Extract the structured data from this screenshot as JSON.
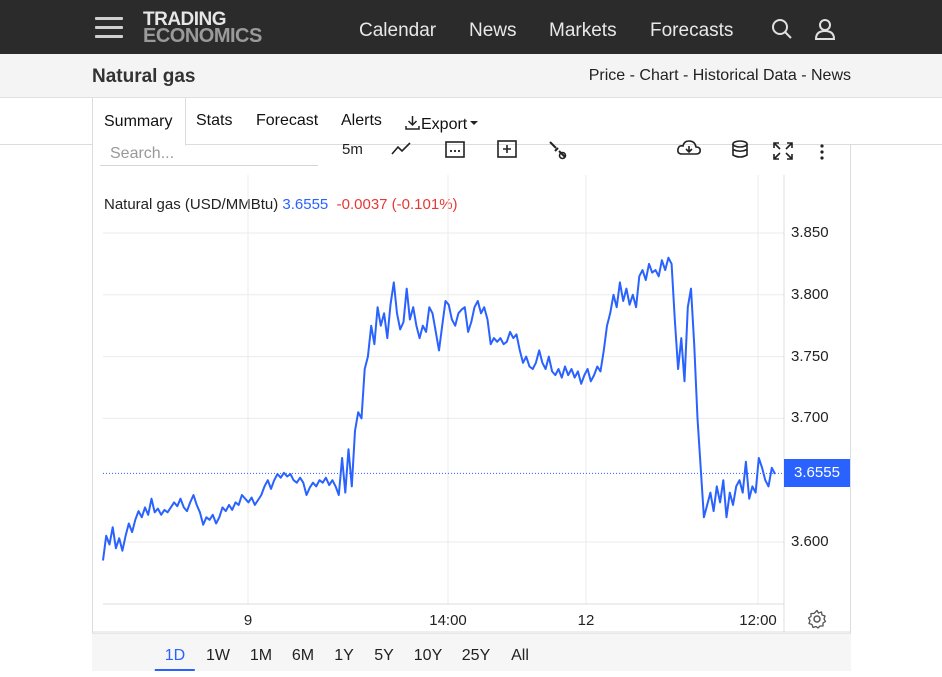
{
  "header": {
    "logo_line1": "TRADING",
    "logo_line2": "ECONOMICS",
    "nav": [
      "Calendar",
      "News",
      "Markets",
      "Forecasts"
    ],
    "icons": [
      "menu-icon",
      "search-icon",
      "user-icon"
    ]
  },
  "subheader": {
    "title": "Natural gas",
    "links": [
      "Price",
      "Chart",
      "Historical Data",
      "News"
    ],
    "separator": " - "
  },
  "tabs": {
    "summary": "Summary",
    "stats": "Stats",
    "forecast": "Forecast",
    "alerts": "Alerts",
    "export": "Export"
  },
  "toolbar": {
    "search_placeholder": "Search...",
    "interval": "5m",
    "icons": [
      "line-type-icon",
      "calendar-icon",
      "add-icon",
      "wrench-icon",
      "download-icon",
      "database-icon",
      "fullscreen-icon",
      "more-icon"
    ]
  },
  "quote": {
    "name": "Natural gas (USD/MMBtu)",
    "price": "3.6555",
    "change": "-0.0037",
    "change_pct": "(-0.101%)"
  },
  "chart_data": {
    "type": "line",
    "series_color": "#2962ff",
    "ylim": [
      3.55,
      3.9
    ],
    "yticks": [
      "3.850",
      "3.800",
      "3.750",
      "3.700",
      "3.600"
    ],
    "xticks": [
      "9",
      "14:00",
      "12",
      "12:00"
    ],
    "last_price_label": "3.6555",
    "last_price": 3.6555,
    "grid": true,
    "values": [
      3.585,
      3.605,
      3.598,
      3.612,
      3.595,
      3.603,
      3.593,
      3.605,
      3.615,
      3.608,
      3.618,
      3.625,
      3.62,
      3.628,
      3.622,
      3.635,
      3.624,
      3.627,
      3.622,
      3.626,
      3.624,
      3.628,
      3.632,
      3.629,
      3.635,
      3.628,
      3.625,
      3.632,
      3.638,
      3.63,
      3.624,
      3.614,
      3.62,
      3.618,
      3.622,
      3.615,
      3.62,
      3.628,
      3.625,
      3.63,
      3.626,
      3.632,
      3.63,
      3.638,
      3.635,
      3.632,
      3.636,
      3.63,
      3.634,
      3.638,
      3.645,
      3.65,
      3.643,
      3.65,
      3.655,
      3.652,
      3.656,
      3.653,
      3.655,
      3.65,
      3.648,
      3.652,
      3.648,
      3.638,
      3.644,
      3.648,
      3.645,
      3.65,
      3.648,
      3.652,
      3.646,
      3.65,
      3.645,
      3.638,
      3.668,
      3.64,
      3.675,
      3.645,
      3.69,
      3.705,
      3.7,
      3.74,
      3.75,
      3.775,
      3.76,
      3.79,
      3.775,
      3.785,
      3.765,
      3.792,
      3.81,
      3.785,
      3.772,
      3.778,
      3.805,
      3.78,
      3.79,
      3.775,
      3.765,
      3.775,
      3.77,
      3.79,
      3.785,
      3.77,
      3.755,
      3.775,
      3.795,
      3.792,
      3.78,
      3.775,
      3.785,
      3.788,
      3.79,
      3.77,
      3.778,
      3.79,
      3.795,
      3.785,
      3.79,
      3.78,
      3.76,
      3.765,
      3.762,
      3.765,
      3.76,
      3.762,
      3.77,
      3.765,
      3.768,
      3.755,
      3.745,
      3.75,
      3.742,
      3.74,
      3.745,
      3.755,
      3.745,
      3.74,
      3.75,
      3.738,
      3.735,
      3.74,
      3.733,
      3.742,
      3.735,
      3.74,
      3.733,
      3.738,
      3.728,
      3.735,
      3.74,
      3.73,
      3.735,
      3.742,
      3.738,
      3.755,
      3.775,
      3.785,
      3.8,
      3.79,
      3.81,
      3.795,
      3.805,
      3.792,
      3.8,
      3.79,
      3.815,
      3.82,
      3.812,
      3.825,
      3.818,
      3.82,
      3.815,
      3.828,
      3.82,
      3.83,
      3.825,
      3.78,
      3.74,
      3.765,
      3.73,
      3.79,
      3.805,
      3.76,
      3.7,
      3.66,
      3.62,
      3.63,
      3.64,
      3.625,
      3.645,
      3.632,
      3.65,
      3.62,
      3.64,
      3.63,
      3.645,
      3.65,
      3.64,
      3.665,
      3.635,
      3.645,
      3.64,
      3.668,
      3.66,
      3.65,
      3.645,
      3.66,
      3.655
    ]
  },
  "range_selector": {
    "items": [
      "1D",
      "1W",
      "1M",
      "6M",
      "1Y",
      "5Y",
      "10Y",
      "25Y",
      "All"
    ],
    "active": "1D"
  }
}
